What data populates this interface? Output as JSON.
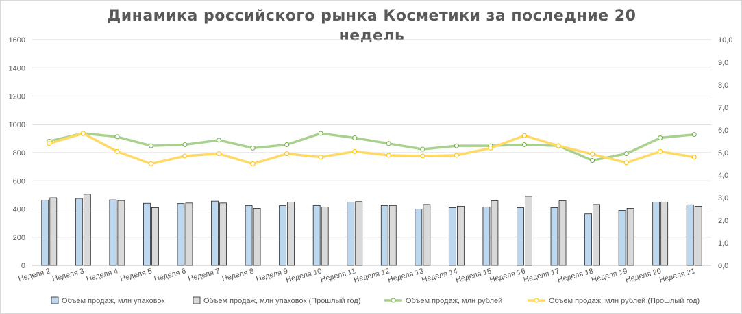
{
  "chart_data": {
    "type": "bar",
    "title_lines": [
      "Динамика российского рынка Косметики за последние 20",
      "недель"
    ],
    "categories": [
      "Неделя 2",
      "Неделя 3",
      "Неделя 4",
      "Неделя 5",
      "Неделя 6",
      "Неделя 7",
      "Неделя 8",
      "Неделя 9",
      "Неделя 10",
      "Неделя 11",
      "Неделя 12",
      "Неделя 13",
      "Неделя 14",
      "Неделя 15",
      "Неделя 16",
      "Неделя 17",
      "Неделя 18",
      "Неделя 19",
      "Неделя 20",
      "Неделя 21"
    ],
    "left_axis": {
      "range": [
        0,
        1600
      ],
      "ticks": [
        "0",
        "200",
        "400",
        "600",
        "800",
        "1000",
        "1200",
        "1400",
        "1600"
      ]
    },
    "right_axis": {
      "range": [
        0,
        10
      ],
      "ticks": [
        "0,0",
        "1,0",
        "2,0",
        "3,0",
        "4,0",
        "5,0",
        "6,0",
        "7,0",
        "8,0",
        "9,0",
        "10,0"
      ]
    },
    "grid": true,
    "legend_position": "bottom",
    "series": [
      {
        "name": "Объем продаж, млн упаковок",
        "kind": "bar",
        "axis": "left",
        "color": "#bdd7ee",
        "values": [
          463,
          475,
          465,
          440,
          438,
          455,
          425,
          425,
          425,
          448,
          425,
          400,
          410,
          415,
          410,
          410,
          365,
          390,
          448,
          430
        ]
      },
      {
        "name": "Объем продаж, млн упаковок (Прошлый год)",
        "kind": "bar",
        "axis": "left",
        "color": "#d9d9d9",
        "values": [
          480,
          505,
          460,
          410,
          442,
          442,
          405,
          448,
          415,
          452,
          425,
          432,
          420,
          458,
          490,
          458,
          432,
          405,
          448,
          420
        ]
      },
      {
        "name": "Объем продаж, млн рублей",
        "kind": "line",
        "axis": "right",
        "color": "#a9d18e",
        "values": [
          5.5,
          5.85,
          5.7,
          5.3,
          5.35,
          5.55,
          5.2,
          5.35,
          5.85,
          5.65,
          5.4,
          5.15,
          5.3,
          5.3,
          5.35,
          5.3,
          4.65,
          4.95,
          5.65,
          5.8
        ]
      },
      {
        "name": "Объем продаж, млн рублей (Прошлый год)",
        "kind": "line",
        "axis": "right",
        "color": "#ffd966",
        "values": [
          5.4,
          5.85,
          5.05,
          4.5,
          4.85,
          4.95,
          4.5,
          4.95,
          4.8,
          5.05,
          4.88,
          4.85,
          4.88,
          5.2,
          5.75,
          5.3,
          4.93,
          4.55,
          5.05,
          4.8
        ]
      }
    ]
  }
}
